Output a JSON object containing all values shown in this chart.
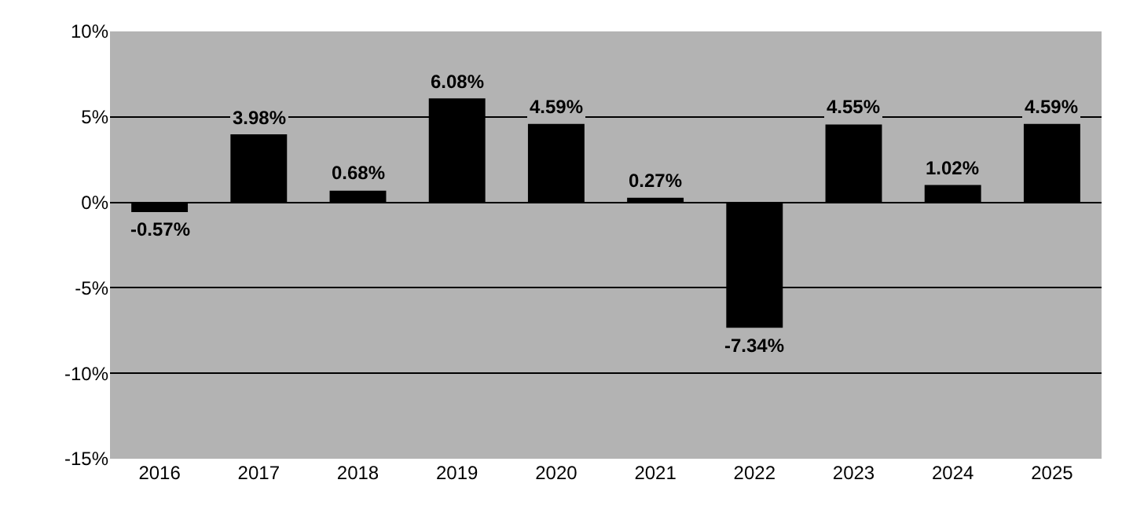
{
  "chart_data": {
    "type": "bar",
    "categories": [
      "2016",
      "2017",
      "2018",
      "2019",
      "2020",
      "2021",
      "2022",
      "2023",
      "2024",
      "2025"
    ],
    "values": [
      -0.57,
      3.98,
      0.68,
      6.08,
      4.59,
      0.27,
      -7.34,
      4.55,
      1.02,
      4.59
    ],
    "value_labels": [
      "-0.57%",
      "3.98%",
      "0.68%",
      "6.08%",
      "4.59%",
      "0.27%",
      "-7.34%",
      "4.55%",
      "1.02%",
      "4.59%"
    ],
    "color": "#000000",
    "ylim": [
      -15,
      10
    ],
    "yticks": [
      {
        "value": -15,
        "label": "-15%"
      },
      {
        "value": -10,
        "label": "-10%"
      },
      {
        "value": -5,
        "label": "-5%"
      },
      {
        "value": 0,
        "label": "0%"
      },
      {
        "value": 5,
        "label": "5%"
      },
      {
        "value": 10,
        "label": "10%"
      }
    ],
    "grid": "y",
    "legend": false
  }
}
